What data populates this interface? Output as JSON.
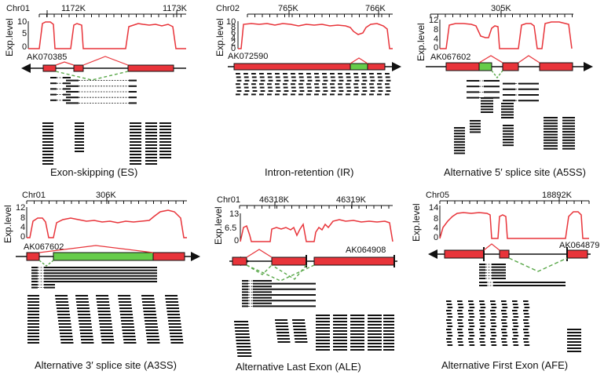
{
  "y_axis_label": "Exp.level",
  "colors": {
    "exon": "#e8343a",
    "retained": "#66cc4a",
    "junction": "#5aa84a",
    "coverage": "#e8343a",
    "read": "#111111"
  },
  "panels": [
    {
      "title": "Exon-skipping (ES)",
      "chromosome": "Chr01",
      "ticks": [
        "1172K",
        "1173K"
      ],
      "y_ticks": [
        "10",
        "5",
        "0"
      ],
      "transcript": "AK070385",
      "strand": "minus"
    },
    {
      "title": "Intron-retention (IR)",
      "chromosome": "Chr02",
      "ticks": [
        "765K",
        "766K"
      ],
      "y_ticks": [
        "10",
        "8",
        "6",
        "4",
        "2",
        "0"
      ],
      "transcript": "AK072590",
      "strand": "plus"
    },
    {
      "title": "Alternative 5′ splice site (A5SS)",
      "chromosome": "Chr01",
      "ticks": [
        "305K"
      ],
      "y_ticks": [
        "12",
        "8",
        "4",
        "0"
      ],
      "transcript": "AK067602",
      "strand": "plus"
    },
    {
      "title": "Alternative 3′ splice site (A3SS)",
      "chromosome": "Chr01",
      "ticks": [
        "306K"
      ],
      "y_ticks": [
        "12",
        "8",
        "4",
        "0"
      ],
      "transcript": "AK067602",
      "strand": "plus"
    },
    {
      "title": "Alternative Last Exon (ALE)",
      "chromosome": "Chr01",
      "ticks": [
        "46318K",
        "46319K"
      ],
      "y_ticks": [
        "13",
        "6.5",
        "0"
      ],
      "transcript": "AK064908",
      "strand": "plus"
    },
    {
      "title": "Alternative First Exon (AFE)",
      "chromosome": "Chr05",
      "ticks": [
        "18892K"
      ],
      "y_ticks": [
        "14",
        "8",
        "4",
        "0"
      ],
      "transcript": "AK064879",
      "strand": "minus"
    }
  ]
}
